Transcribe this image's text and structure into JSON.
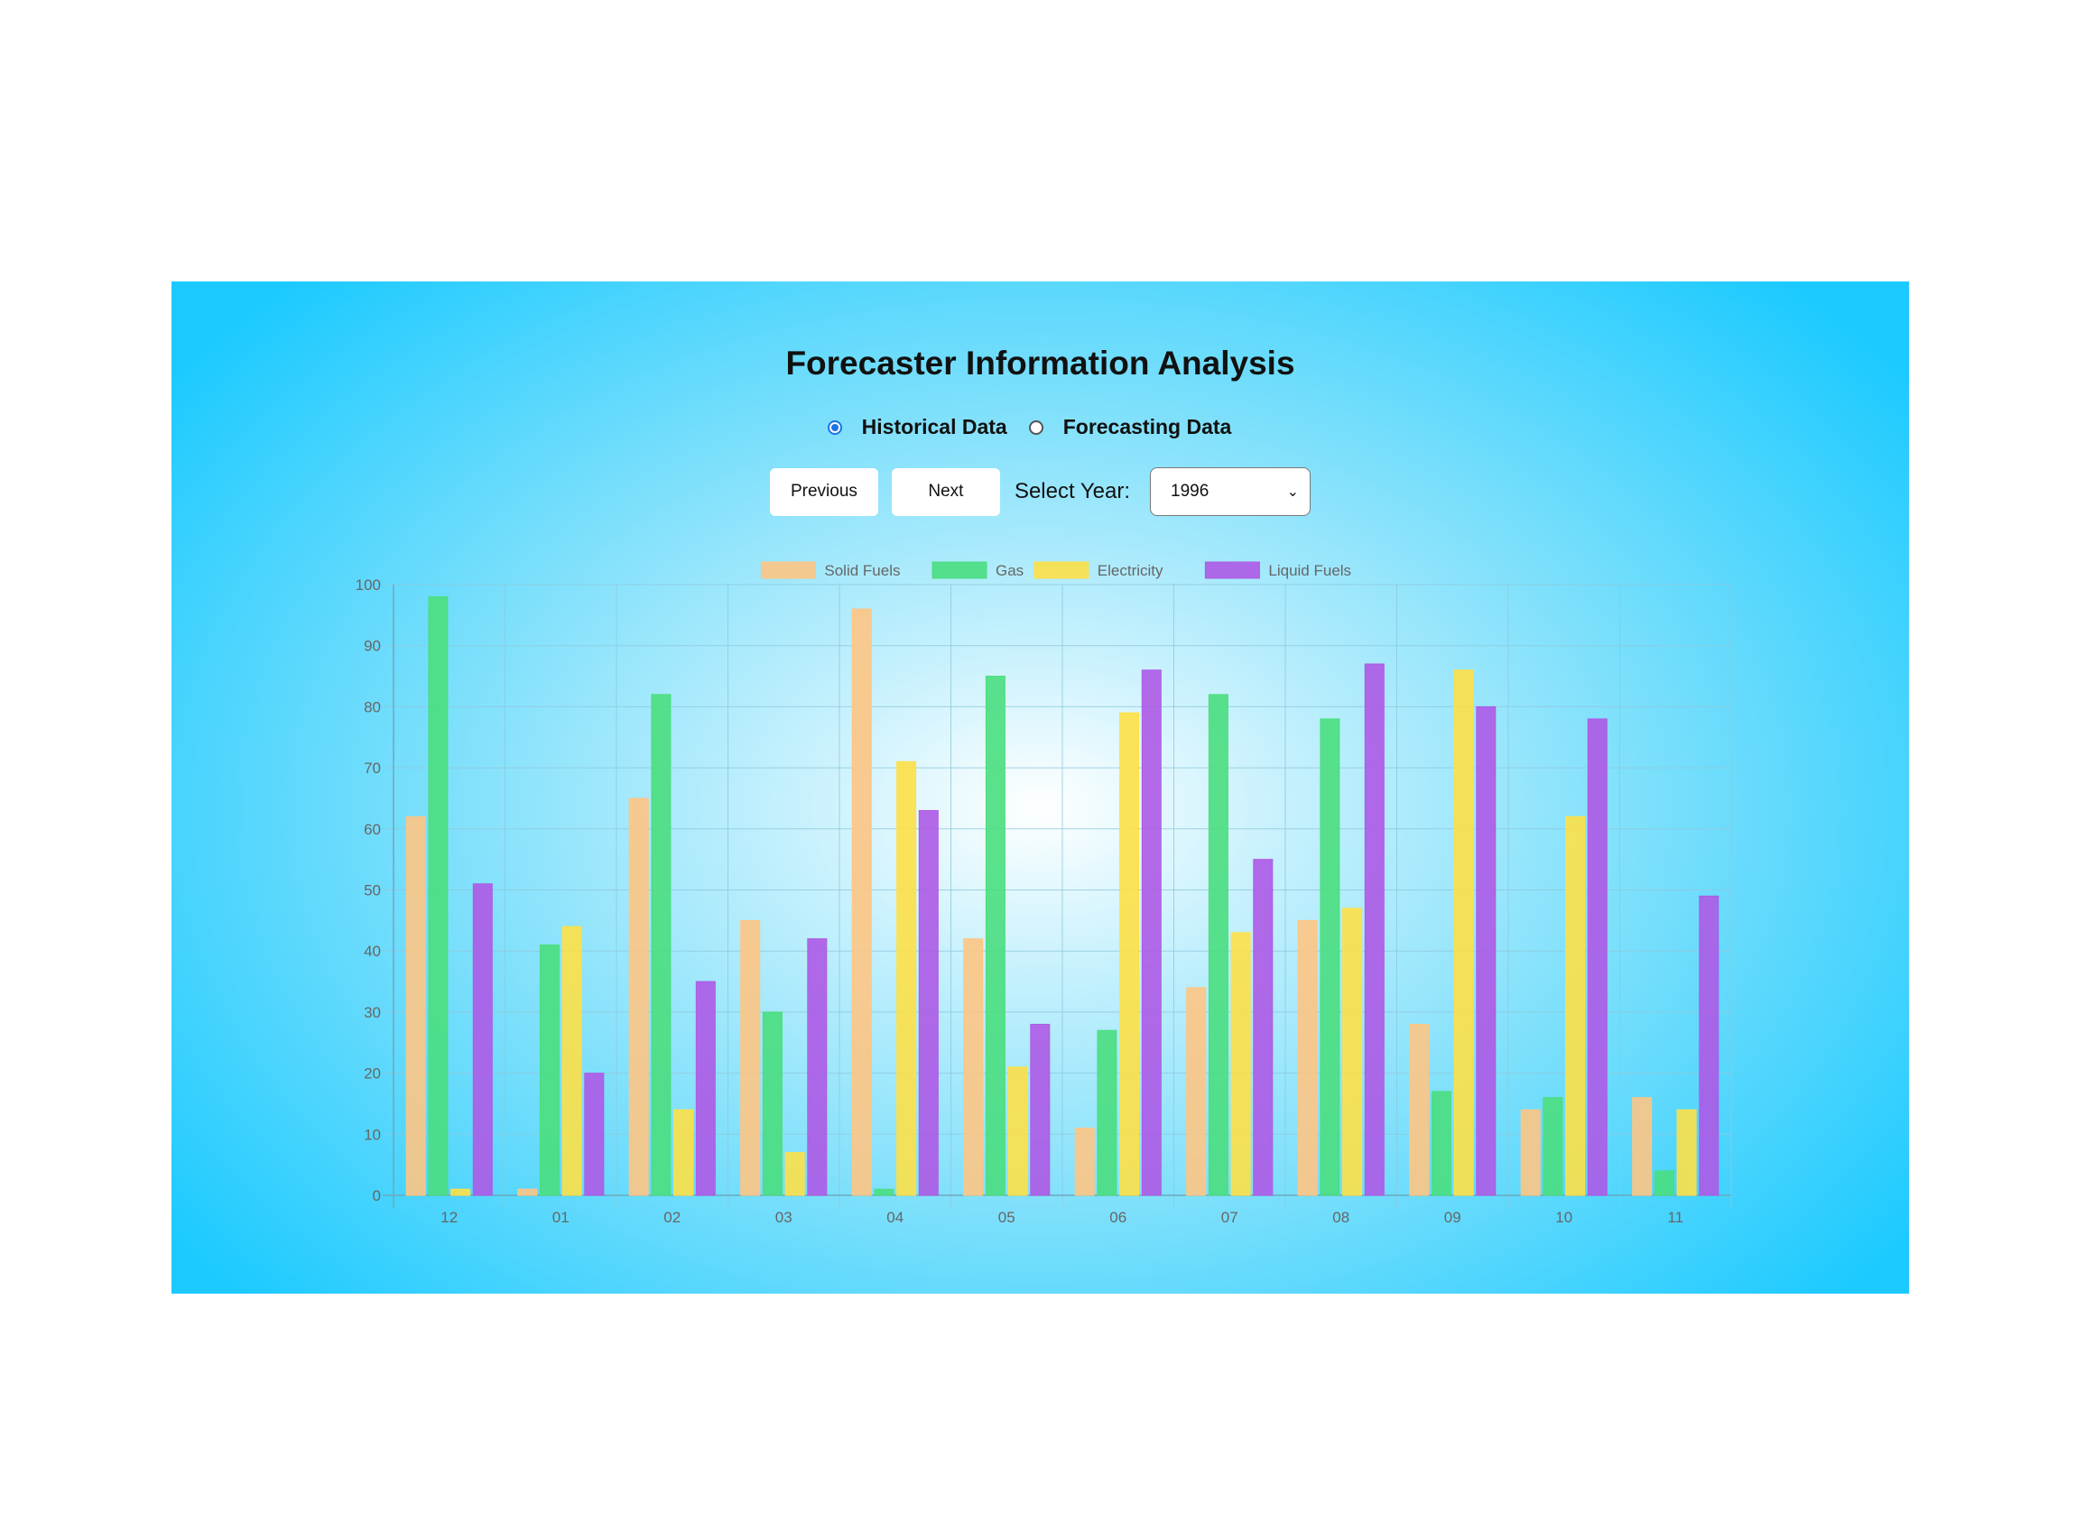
{
  "page": {
    "title": "Forecaster Information Analysis",
    "mode_options": [
      {
        "label": "Historical Data",
        "checked": true
      },
      {
        "label": "Forecasting Data",
        "checked": false
      }
    ],
    "prev_label": "Previous",
    "next_label": "Next",
    "year_label": "Select Year:",
    "selected_year": "1996"
  },
  "colors": {
    "solid_fuels": "#fdc584",
    "gas": "#4ade80",
    "electricity": "#fde047",
    "liquid_fuels": "#ad5ae6",
    "axis_text": "#666666",
    "grid": "#8fc9dc"
  },
  "chart_data": {
    "type": "bar",
    "title": "",
    "xlabel": "",
    "ylabel": "",
    "ylim": [
      0,
      100
    ],
    "yticks": [
      0,
      10,
      20,
      30,
      40,
      50,
      60,
      70,
      80,
      90,
      100
    ],
    "grid": true,
    "legend_position": "top-center",
    "categories": [
      "12",
      "01",
      "02",
      "03",
      "04",
      "05",
      "06",
      "07",
      "08",
      "09",
      "10",
      "11"
    ],
    "series": [
      {
        "name": "Solid Fuels",
        "color_key": "solid_fuels",
        "values": [
          62,
          1,
          65,
          45,
          96,
          42,
          11,
          34,
          45,
          28,
          14,
          16
        ]
      },
      {
        "name": "Gas",
        "color_key": "gas",
        "values": [
          98,
          41,
          82,
          30,
          1,
          85,
          27,
          82,
          78,
          17,
          16,
          4
        ]
      },
      {
        "name": "Electricity",
        "color_key": "electricity",
        "values": [
          1,
          44,
          14,
          7,
          71,
          21,
          79,
          43,
          47,
          86,
          62,
          14
        ]
      },
      {
        "name": "Liquid Fuels",
        "color_key": "liquid_fuels",
        "values": [
          51,
          20,
          35,
          42,
          63,
          28,
          86,
          55,
          87,
          80,
          78,
          49
        ]
      }
    ]
  }
}
